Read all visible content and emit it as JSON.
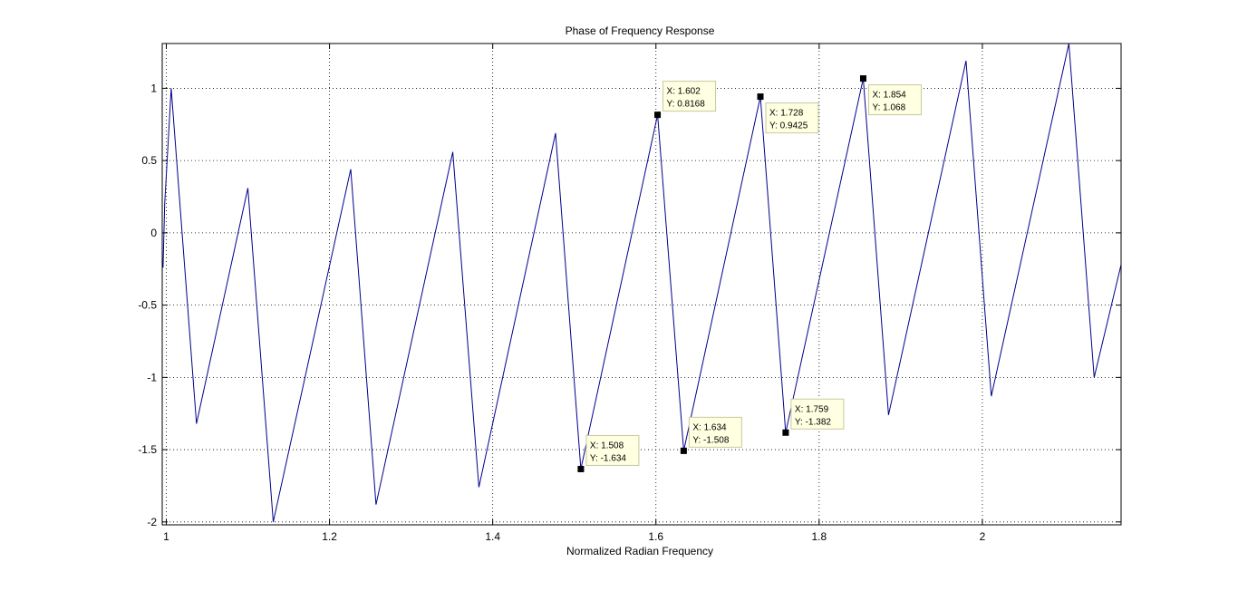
{
  "chart_data": {
    "type": "line",
    "title": "Phase of Frequency Response",
    "xlabel": "Normalized Radian Frequency",
    "ylabel": "",
    "xlim": [
      0.995,
      2.17
    ],
    "ylim": [
      -2.02,
      1.31
    ],
    "xticks": [
      1,
      1.2,
      1.4,
      1.6,
      1.8,
      2
    ],
    "xtick_labels": [
      "1",
      "1.2",
      "1.4",
      "1.6",
      "1.8",
      "2"
    ],
    "yticks": [
      1,
      0.5,
      0,
      -0.5,
      -1,
      -1.5,
      -2
    ],
    "ytick_labels": [
      "1",
      "0.5",
      "0",
      "-0.5",
      "-1",
      "-1.5",
      "-2"
    ],
    "grid": true,
    "line_color": "#00008b",
    "series": [
      {
        "points": [
          [
            0.996,
            -0.24
          ],
          [
            0.998,
            0.2
          ],
          [
            1.006,
            1.0
          ],
          [
            1.037,
            -1.32
          ],
          [
            1.1,
            0.31
          ],
          [
            1.131,
            -2.0
          ],
          [
            1.226,
            0.44
          ],
          [
            1.257,
            -1.88
          ],
          [
            1.351,
            0.56
          ],
          [
            1.383,
            -1.76
          ],
          [
            1.477,
            0.69
          ],
          [
            1.508,
            -1.634
          ],
          [
            1.602,
            0.8168
          ],
          [
            1.634,
            -1.508
          ],
          [
            1.728,
            0.9425
          ],
          [
            1.759,
            -1.382
          ],
          [
            1.854,
            1.068
          ],
          [
            1.885,
            -1.26
          ],
          [
            1.98,
            1.19
          ],
          [
            2.011,
            -1.13
          ],
          [
            2.106,
            1.31
          ],
          [
            2.137,
            -1.0
          ],
          [
            2.17,
            -0.22
          ]
        ]
      }
    ],
    "datatips": [
      {
        "x": 1.602,
        "y": 0.8168,
        "x_text": "X: 1.602",
        "y_text": "Y: 0.8168",
        "side": "above-right"
      },
      {
        "x": 1.728,
        "y": 0.9425,
        "x_text": "X: 1.728",
        "y_text": "Y: 0.9425",
        "side": "below-right"
      },
      {
        "x": 1.854,
        "y": 1.068,
        "x_text": "X: 1.854",
        "y_text": "Y: 1.068",
        "side": "below-right"
      },
      {
        "x": 1.508,
        "y": -1.634,
        "x_text": "X: 1.508",
        "y_text": "Y: -1.634",
        "side": "above-right"
      },
      {
        "x": 1.634,
        "y": -1.508,
        "x_text": "X: 1.634",
        "y_text": "Y: -1.508",
        "side": "above-right"
      },
      {
        "x": 1.759,
        "y": -1.382,
        "x_text": "X: 1.759",
        "y_text": "Y: -1.382",
        "side": "above-right"
      }
    ]
  }
}
